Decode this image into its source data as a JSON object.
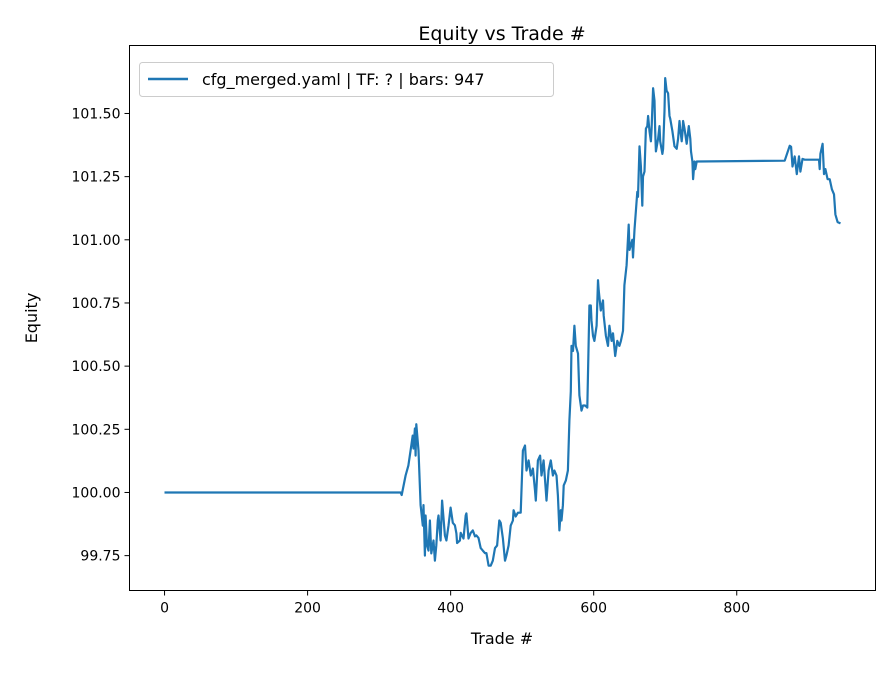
{
  "chart_data": {
    "type": "line",
    "title": "Equity vs Trade #",
    "xlabel": "Trade #",
    "ylabel": "Equity",
    "xlim": [
      -49,
      994
    ],
    "ylim": [
      99.612,
      101.769
    ],
    "xticks": [
      0,
      200,
      400,
      600,
      800
    ],
    "xtick_labels": [
      "0",
      "200",
      "400",
      "600",
      "800"
    ],
    "yticks": [
      99.75,
      100.0,
      100.25,
      100.5,
      100.75,
      101.0,
      101.25,
      101.5
    ],
    "ytick_labels": [
      "99.75",
      "100.00",
      "100.25",
      "100.50",
      "100.75",
      "101.00",
      "101.25",
      "101.50"
    ],
    "grid": false,
    "legend_position": "top-left",
    "series": [
      {
        "name": "cfg_merged.yaml | TF: ? | bars: 947",
        "color": "#1f77b4",
        "points": [
          [
            0,
            100.0
          ],
          [
            330,
            100.0
          ],
          [
            331.5,
            99.99
          ],
          [
            337,
            100.067
          ],
          [
            341,
            100.107
          ],
          [
            345,
            100.186
          ],
          [
            347,
            100.225
          ],
          [
            348,
            100.174
          ],
          [
            350,
            100.253
          ],
          [
            351,
            100.146
          ],
          [
            352,
            100.27
          ],
          [
            355,
            100.166
          ],
          [
            358,
            99.95
          ],
          [
            361,
            99.869
          ],
          [
            362,
            99.95
          ],
          [
            364,
            99.75
          ],
          [
            365,
            99.909
          ],
          [
            367,
            99.79
          ],
          [
            369,
            99.77
          ],
          [
            371,
            99.889
          ],
          [
            373,
            99.759
          ],
          [
            376,
            99.81
          ],
          [
            378,
            99.73
          ],
          [
            380,
            99.79
          ],
          [
            382,
            99.89
          ],
          [
            383,
            99.909
          ],
          [
            386,
            99.81
          ],
          [
            388,
            99.968
          ],
          [
            392,
            99.83
          ],
          [
            394,
            99.81
          ],
          [
            397,
            99.869
          ],
          [
            400,
            99.94
          ],
          [
            403,
            99.88
          ],
          [
            406,
            99.87
          ],
          [
            408,
            99.838
          ],
          [
            409,
            99.8
          ],
          [
            413,
            99.81
          ],
          [
            414,
            99.84
          ],
          [
            418,
            99.818
          ],
          [
            421,
            99.909
          ],
          [
            422,
            99.917
          ],
          [
            425,
            99.818
          ],
          [
            428,
            99.84
          ],
          [
            431,
            99.85
          ],
          [
            434,
            99.826
          ],
          [
            436,
            99.83
          ],
          [
            439,
            99.82
          ],
          [
            442,
            99.78
          ],
          [
            445,
            99.77
          ],
          [
            448,
            99.76
          ],
          [
            450,
            99.76
          ],
          [
            453,
            99.71
          ],
          [
            456,
            99.71
          ],
          [
            459,
            99.73
          ],
          [
            462,
            99.78
          ],
          [
            465,
            99.79
          ],
          [
            468,
            99.889
          ],
          [
            470,
            99.88
          ],
          [
            473,
            99.818
          ],
          [
            476,
            99.73
          ],
          [
            478,
            99.75
          ],
          [
            481,
            99.79
          ],
          [
            484,
            99.869
          ],
          [
            487,
            99.889
          ],
          [
            488,
            99.93
          ],
          [
            491,
            99.905
          ],
          [
            494,
            99.92
          ],
          [
            498,
            99.92
          ],
          [
            501,
            100.166
          ],
          [
            504,
            100.186
          ],
          [
            506,
            100.087
          ],
          [
            509,
            100.127
          ],
          [
            512,
            100.067
          ],
          [
            515,
            100.095
          ],
          [
            518,
            100.008
          ],
          [
            519,
            99.968
          ],
          [
            522,
            100.127
          ],
          [
            525,
            100.146
          ],
          [
            527,
            100.067
          ],
          [
            530,
            100.127
          ],
          [
            533,
            100.008
          ],
          [
            534,
            99.968
          ],
          [
            537,
            100.087
          ],
          [
            540,
            100.127
          ],
          [
            543,
            100.067
          ],
          [
            545,
            100.087
          ],
          [
            548,
            100.067
          ],
          [
            550,
            99.988
          ],
          [
            552,
            99.85
          ],
          [
            554,
            99.93
          ],
          [
            555,
            99.889
          ],
          [
            557,
            99.95
          ],
          [
            558,
            100.028
          ],
          [
            561,
            100.047
          ],
          [
            564,
            100.087
          ],
          [
            566,
            100.285
          ],
          [
            568,
            100.4
          ],
          [
            569,
            100.58
          ],
          [
            571,
            100.56
          ],
          [
            573,
            100.66
          ],
          [
            575,
            100.58
          ],
          [
            578,
            100.55
          ],
          [
            580,
            100.384
          ],
          [
            583,
            100.324
          ],
          [
            585,
            100.344
          ],
          [
            588,
            100.344
          ],
          [
            591,
            100.336
          ],
          [
            594,
            100.74
          ],
          [
            596,
            100.74
          ],
          [
            597,
            100.68
          ],
          [
            599,
            100.62
          ],
          [
            601,
            100.6
          ],
          [
            604,
            100.66
          ],
          [
            606,
            100.84
          ],
          [
            607,
            100.8
          ],
          [
            610,
            100.72
          ],
          [
            613,
            100.76
          ],
          [
            614,
            100.7
          ],
          [
            617,
            100.62
          ],
          [
            620,
            100.58
          ],
          [
            622,
            100.66
          ],
          [
            625,
            100.6
          ],
          [
            627,
            100.63
          ],
          [
            630,
            100.54
          ],
          [
            633,
            100.6
          ],
          [
            636,
            100.58
          ],
          [
            638,
            100.6
          ],
          [
            641,
            100.64
          ],
          [
            643,
            100.82
          ],
          [
            646,
            100.9
          ],
          [
            649,
            101.06
          ],
          [
            650,
            100.96
          ],
          [
            654,
            101.0
          ],
          [
            655,
            100.93
          ],
          [
            657,
            101.04
          ],
          [
            661,
            101.19
          ],
          [
            662,
            101.17
          ],
          [
            664,
            101.37
          ],
          [
            666,
            101.29
          ],
          [
            668,
            101.135
          ],
          [
            669,
            101.25
          ],
          [
            671,
            101.27
          ],
          [
            673,
            101.44
          ],
          [
            675,
            101.45
          ],
          [
            676,
            101.49
          ],
          [
            678,
            101.43
          ],
          [
            680,
            101.39
          ],
          [
            681,
            101.44
          ],
          [
            683,
            101.6
          ],
          [
            685,
            101.55
          ],
          [
            686,
            101.43
          ],
          [
            687,
            101.35
          ],
          [
            690,
            101.4
          ],
          [
            692,
            101.45
          ],
          [
            693,
            101.39
          ],
          [
            696,
            101.34
          ],
          [
            697,
            101.36
          ],
          [
            699,
            101.51
          ],
          [
            700,
            101.64
          ],
          [
            702,
            101.59
          ],
          [
            704,
            101.58
          ],
          [
            706,
            101.49
          ],
          [
            707,
            101.48
          ],
          [
            710,
            101.43
          ],
          [
            713,
            101.37
          ],
          [
            716,
            101.36
          ],
          [
            718,
            101.4
          ],
          [
            720,
            101.47
          ],
          [
            721,
            101.44
          ],
          [
            723,
            101.39
          ],
          [
            724,
            101.42
          ],
          [
            725,
            101.47
          ],
          [
            727,
            101.44
          ],
          [
            730,
            101.38
          ],
          [
            733,
            101.45
          ],
          [
            735,
            101.4
          ],
          [
            736,
            101.35
          ],
          [
            738,
            101.31
          ],
          [
            739,
            101.24
          ],
          [
            741,
            101.31
          ],
          [
            742,
            101.28
          ],
          [
            744,
            101.31
          ],
          [
            867,
            101.313
          ],
          [
            874,
            101.372
          ],
          [
            876,
            101.368
          ],
          [
            878,
            101.29
          ],
          [
            881,
            101.33
          ],
          [
            884,
            101.26
          ],
          [
            887,
            101.33
          ],
          [
            889,
            101.27
          ],
          [
            892,
            101.32
          ],
          [
            895,
            101.317
          ],
          [
            915,
            101.317
          ],
          [
            916,
            101.28
          ],
          [
            917,
            101.34
          ],
          [
            920,
            101.38
          ],
          [
            922,
            101.26
          ],
          [
            924,
            101.28
          ],
          [
            927,
            101.24
          ],
          [
            930,
            101.24
          ],
          [
            933,
            101.2
          ],
          [
            936,
            101.18
          ],
          [
            938,
            101.1
          ],
          [
            941,
            101.07
          ],
          [
            945,
            101.065
          ]
        ]
      }
    ]
  }
}
